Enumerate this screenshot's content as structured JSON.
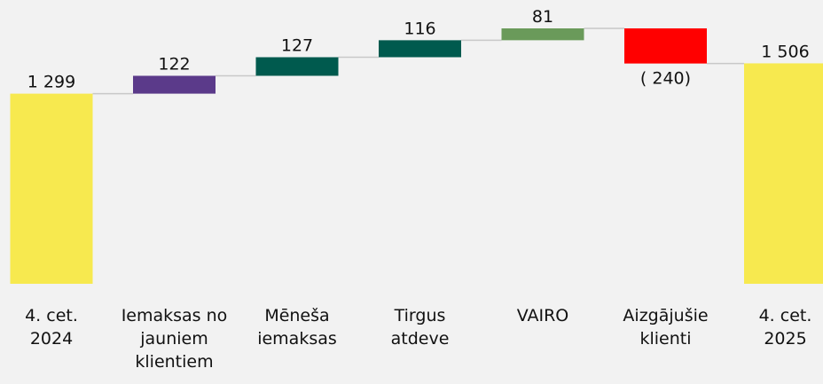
{
  "chart_data": {
    "type": "waterfall",
    "categories": [
      "4. cet.\n2024",
      "Iemaksas no\njauniem\nklientiem",
      "Mēneša\niemaksas",
      "Tirgus\natdeve",
      "VAIRO",
      "Aizgājušie\nklienti",
      "4. cet.\n2025"
    ],
    "values": [
      1299,
      122,
      127,
      116,
      81,
      -240,
      1506
    ],
    "value_labels": [
      "1 299",
      "122",
      "127",
      "116",
      "81",
      "( 240)",
      "1 506"
    ],
    "measures": [
      "total",
      "relative",
      "relative",
      "relative",
      "relative",
      "relative",
      "total"
    ],
    "colors": [
      "#f7e94f",
      "#5b3a8a",
      "#005a4e",
      "#005a4e",
      "#6a9a5a",
      "#ff0000",
      "#f7e94f"
    ]
  }
}
